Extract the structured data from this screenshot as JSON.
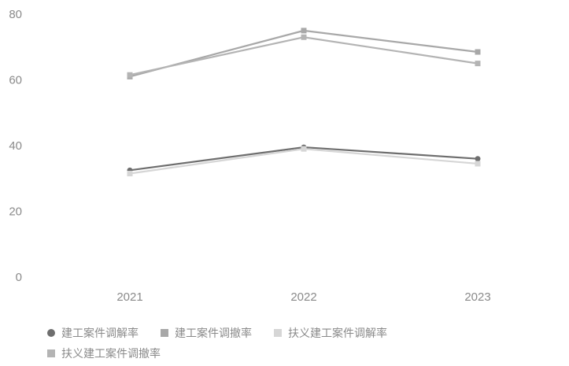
{
  "chart_data": {
    "type": "line",
    "categories": [
      "2021",
      "2022",
      "2023"
    ],
    "ylim": [
      0,
      80
    ],
    "yticks": [
      0,
      20,
      40,
      60,
      80
    ],
    "grid": false,
    "legend_position": "bottom",
    "series": [
      {
        "name": "建工案件调解率",
        "values": [
          32.5,
          39.5,
          36
        ],
        "color": "#6e6e6e",
        "marker": "circle"
      },
      {
        "name": "建工案件调撤率",
        "values": [
          61,
          75,
          68.5
        ],
        "color": "#a8a8a8",
        "marker": "square"
      },
      {
        "name": "扶义建工案件调解率",
        "values": [
          31.5,
          39,
          34.5
        ],
        "color": "#d6d6d6",
        "marker": "square"
      },
      {
        "name": "扶义建工案件调撤率",
        "values": [
          61.5,
          73,
          65
        ],
        "color": "#b4b4b4",
        "marker": "square"
      }
    ]
  }
}
